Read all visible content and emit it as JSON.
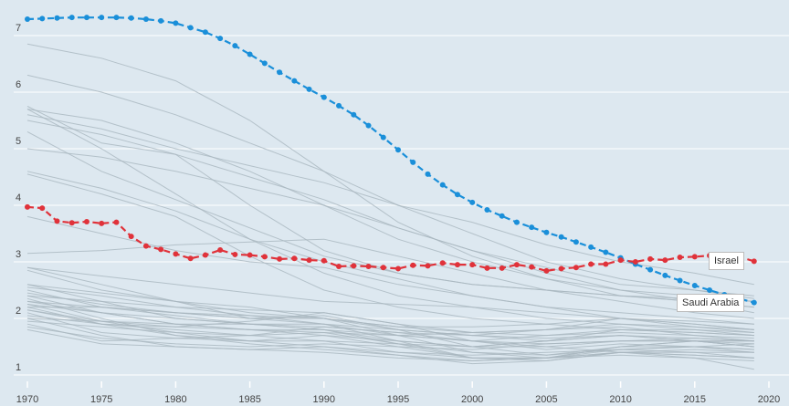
{
  "chart_data": {
    "type": "line",
    "title": "",
    "xlabel": "",
    "ylabel": "",
    "xlim": [
      1970,
      2020
    ],
    "ylim": [
      1,
      7
    ],
    "x_ticks": [
      "1970",
      "1975",
      "1980",
      "1985",
      "1990",
      "1995",
      "2000",
      "2005",
      "2010",
      "2015",
      "2020"
    ],
    "y_ticks": [
      "1",
      "2",
      "3",
      "4",
      "5",
      "6",
      "7"
    ],
    "grid": true,
    "highlighted_series": [
      {
        "name": "Saudi Arabia",
        "color": "#1a8fd9",
        "start_year": 1970,
        "values": [
          7.29,
          7.3,
          7.31,
          7.32,
          7.32,
          7.32,
          7.32,
          7.31,
          7.29,
          7.26,
          7.22,
          7.14,
          7.06,
          6.95,
          6.82,
          6.67,
          6.51,
          6.35,
          6.2,
          6.05,
          5.91,
          5.76,
          5.6,
          5.41,
          5.2,
          4.98,
          4.76,
          4.55,
          4.36,
          4.19,
          4.05,
          3.92,
          3.81,
          3.7,
          3.61,
          3.52,
          3.44,
          3.35,
          3.26,
          3.17,
          3.07,
          2.96,
          2.86,
          2.76,
          2.67,
          2.58,
          2.5,
          2.42,
          2.35,
          2.28
        ]
      },
      {
        "name": "Israel",
        "color": "#e0323a",
        "start_year": 1970,
        "values": [
          3.97,
          3.95,
          3.72,
          3.69,
          3.71,
          3.68,
          3.7,
          3.45,
          3.28,
          3.22,
          3.14,
          3.06,
          3.12,
          3.21,
          3.13,
          3.12,
          3.09,
          3.05,
          3.06,
          3.03,
          3.02,
          2.92,
          2.93,
          2.92,
          2.9,
          2.88,
          2.94,
          2.93,
          2.98,
          2.95,
          2.95,
          2.89,
          2.89,
          2.95,
          2.91,
          2.84,
          2.88,
          2.9,
          2.96,
          2.96,
          3.03,
          3.0,
          3.05,
          3.03,
          3.08,
          3.09,
          3.11,
          3.11,
          3.09,
          3.01
        ]
      }
    ],
    "background_series_years": [
      1970,
      1975,
      1980,
      1985,
      1990,
      1995,
      2000,
      2005,
      2010,
      2015,
      2019
    ],
    "background_series_color": "#a9b6bf",
    "background_series": [
      [
        6.85,
        6.6,
        6.2,
        5.5,
        4.6,
        3.7,
        3.1,
        2.7,
        2.5,
        2.4,
        2.3
      ],
      [
        6.3,
        6.0,
        5.6,
        5.1,
        4.6,
        4.0,
        3.5,
        3.0,
        2.7,
        2.5,
        2.35
      ],
      [
        5.7,
        5.5,
        5.1,
        4.6,
        4.0,
        3.4,
        3.0,
        2.7,
        2.4,
        2.3,
        2.2
      ],
      [
        5.75,
        5.1,
        4.9,
        4.0,
        3.2,
        2.8,
        2.6,
        2.5,
        2.4,
        2.35,
        2.3
      ],
      [
        5.6,
        5.35,
        5.0,
        4.7,
        4.4,
        4.0,
        3.7,
        3.3,
        3.0,
        2.8,
        2.6
      ],
      [
        5.5,
        5.25,
        4.9,
        4.5,
        4.1,
        3.6,
        3.2,
        2.9,
        2.6,
        2.5,
        2.4
      ],
      [
        5.3,
        4.6,
        4.1,
        3.6,
        3.1,
        2.8,
        2.6,
        2.5,
        2.4,
        2.3,
        2.2
      ],
      [
        5.0,
        4.85,
        4.6,
        4.3,
        4.0,
        3.6,
        3.2,
        2.8,
        2.5,
        2.3,
        2.1
      ],
      [
        4.6,
        4.3,
        3.9,
        3.4,
        3.0,
        2.7,
        2.4,
        2.2,
        2.1,
        2.0,
        1.9
      ],
      [
        4.55,
        4.2,
        3.8,
        3.1,
        2.5,
        2.2,
        2.0,
        1.9,
        1.8,
        1.75,
        1.7
      ],
      [
        3.8,
        3.5,
        3.2,
        3.0,
        2.9,
        2.6,
        2.4,
        2.2,
        2.0,
        1.95,
        1.9
      ],
      [
        3.15,
        3.2,
        3.3,
        3.35,
        3.4,
        3.1,
        2.8,
        2.5,
        2.3,
        2.1,
        2.0
      ],
      [
        5.7,
        5.0,
        4.2,
        3.4,
        2.8,
        2.4,
        2.2,
        2.0,
        1.9,
        1.85,
        1.8
      ],
      [
        2.9,
        2.75,
        2.6,
        2.45,
        2.3,
        2.25,
        2.2,
        2.1,
        2.0,
        1.9,
        1.8
      ],
      [
        2.85,
        2.5,
        2.3,
        2.1,
        2.0,
        1.8,
        1.7,
        1.6,
        1.7,
        1.6,
        1.5
      ],
      [
        2.6,
        2.3,
        2.0,
        1.9,
        1.8,
        1.6,
        1.5,
        1.5,
        1.6,
        1.6,
        1.5
      ],
      [
        2.5,
        2.2,
        2.1,
        2.0,
        2.0,
        1.7,
        1.4,
        1.3,
        1.4,
        1.4,
        1.3
      ],
      [
        2.45,
        2.25,
        2.1,
        2.05,
        2.0,
        1.85,
        1.75,
        1.8,
        1.9,
        1.8,
        1.7
      ],
      [
        2.4,
        2.1,
        1.9,
        1.8,
        1.7,
        1.5,
        1.3,
        1.3,
        1.4,
        1.35,
        1.3
      ],
      [
        2.35,
        2.0,
        1.7,
        1.6,
        1.6,
        1.4,
        1.3,
        1.3,
        1.5,
        1.6,
        1.6
      ],
      [
        2.3,
        2.1,
        2.0,
        1.9,
        1.9,
        1.6,
        1.3,
        1.3,
        1.5,
        1.5,
        1.4
      ],
      [
        2.25,
        2.1,
        1.9,
        1.8,
        1.8,
        1.7,
        1.6,
        1.7,
        1.8,
        1.75,
        1.7
      ],
      [
        2.2,
        1.9,
        1.8,
        1.7,
        1.6,
        1.55,
        1.5,
        1.6,
        1.8,
        1.8,
        1.75
      ],
      [
        2.2,
        2.2,
        2.1,
        2.0,
        2.05,
        1.8,
        1.5,
        1.35,
        1.5,
        1.6,
        1.6
      ],
      [
        2.15,
        1.9,
        1.7,
        1.55,
        1.45,
        1.35,
        1.2,
        1.25,
        1.4,
        1.35,
        1.3
      ],
      [
        2.1,
        1.75,
        1.65,
        1.6,
        1.7,
        1.6,
        1.5,
        1.6,
        1.7,
        1.6,
        1.5
      ],
      [
        2.05,
        1.9,
        1.85,
        1.8,
        1.75,
        1.7,
        1.75,
        1.8,
        2.0,
        1.9,
        1.8
      ],
      [
        2.0,
        1.7,
        1.5,
        1.45,
        1.4,
        1.3,
        1.25,
        1.3,
        1.35,
        1.3,
        1.25
      ],
      [
        1.95,
        1.85,
        1.75,
        1.6,
        1.5,
        1.4,
        1.35,
        1.4,
        1.45,
        1.5,
        1.55
      ],
      [
        1.9,
        1.6,
        1.65,
        1.7,
        1.85,
        1.75,
        1.6,
        1.5,
        1.4,
        1.3,
        1.1
      ],
      [
        1.85,
        1.65,
        1.55,
        1.5,
        1.55,
        1.5,
        1.45,
        1.55,
        1.6,
        1.65,
        1.6
      ],
      [
        2.0,
        1.95,
        1.9,
        1.9,
        1.85,
        1.75,
        1.7,
        1.8,
        1.85,
        1.7,
        1.65
      ],
      [
        2.3,
        2.2,
        2.05,
        1.9,
        1.8,
        1.55,
        1.3,
        1.25,
        1.4,
        1.45,
        1.4
      ],
      [
        2.55,
        2.4,
        2.2,
        2.05,
        1.9,
        1.8,
        1.7,
        1.65,
        1.7,
        1.65,
        1.6
      ],
      [
        2.9,
        2.6,
        2.3,
        2.0,
        1.9,
        1.7,
        1.6,
        1.55,
        1.6,
        1.6,
        1.55
      ],
      [
        2.4,
        2.3,
        2.2,
        2.15,
        2.1,
        1.9,
        1.6,
        1.45,
        1.55,
        1.5,
        1.45
      ],
      [
        2.15,
        1.95,
        1.75,
        1.7,
        1.75,
        1.55,
        1.4,
        1.35,
        1.45,
        1.5,
        1.45
      ],
      [
        2.6,
        2.45,
        2.3,
        2.2,
        2.0,
        1.85,
        1.85,
        1.9,
        2.0,
        1.85,
        1.75
      ],
      [
        2.25,
        1.95,
        1.85,
        1.95,
        2.1,
        1.9,
        1.75,
        1.7,
        1.75,
        1.7,
        1.6
      ],
      [
        1.8,
        1.55,
        1.5,
        1.45,
        1.5,
        1.35,
        1.25,
        1.3,
        1.45,
        1.4,
        1.4
      ]
    ]
  },
  "labels": {
    "israel": "Israel",
    "saudi": "Saudi Arabia"
  }
}
